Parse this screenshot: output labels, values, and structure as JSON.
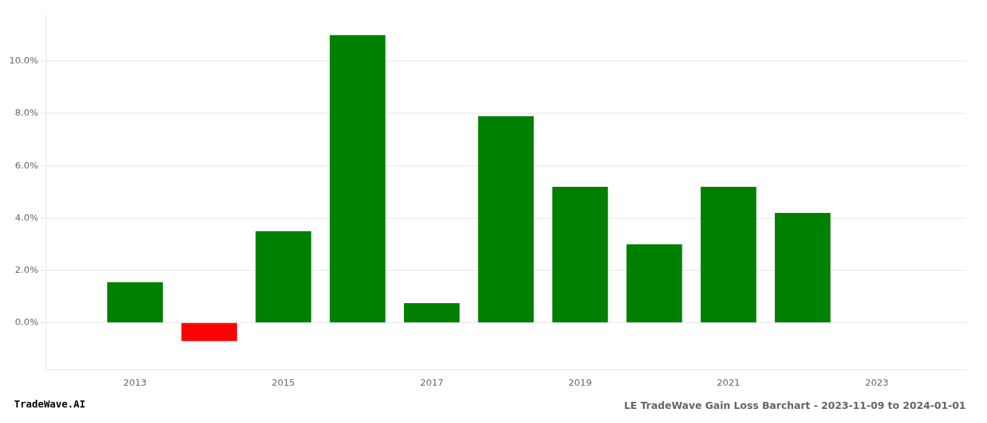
{
  "chart_data": {
    "type": "bar",
    "title": "LE TradeWave Gain Loss Barchart - 2023-11-09 to 2024-01-01",
    "annotations": [
      "TradeWave.AI"
    ],
    "x": [
      2013,
      2014,
      2015,
      2016,
      2017,
      2018,
      2019,
      2020,
      2021,
      2022
    ],
    "values": [
      0.0155,
      -0.007,
      0.035,
      0.11,
      0.0075,
      0.079,
      0.052,
      0.03,
      0.052,
      0.042
    ],
    "colors": [
      "#008000",
      "#ff0000",
      "#008000",
      "#008000",
      "#008000",
      "#008000",
      "#008000",
      "#008000",
      "#008000",
      "#008000"
    ],
    "xlim": [
      2011.8,
      2024.2
    ],
    "xticks": [
      2013,
      2015,
      2017,
      2019,
      2021,
      2023
    ],
    "ylim": [
      -0.018,
      0.118
    ],
    "yticks": [
      {
        "value": 0.0,
        "label": "0.0%"
      },
      {
        "value": 0.02,
        "label": "2.0%"
      },
      {
        "value": 0.04,
        "label": "4.0%"
      },
      {
        "value": 0.06,
        "label": "6.0%"
      },
      {
        "value": 0.08,
        "label": "8.0%"
      },
      {
        "value": 0.1,
        "label": "10.0%"
      }
    ],
    "grid": true
  }
}
